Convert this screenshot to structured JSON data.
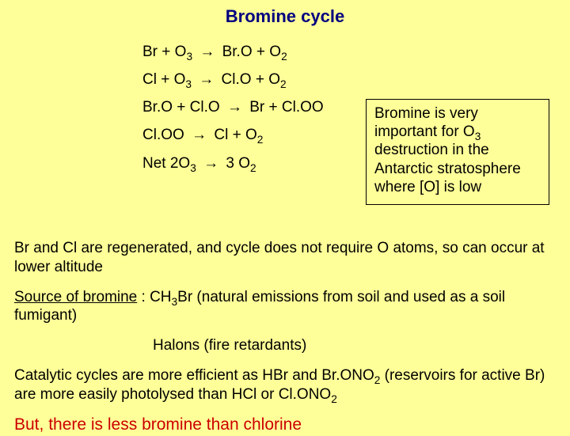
{
  "title": "Bromine cycle",
  "colors": {
    "background": "#ffff99",
    "title": "#000080",
    "final": "#cc0000",
    "box_border": "#000000",
    "text": "#000000"
  },
  "equations": {
    "eq1_lhs": "Br + O",
    "eq1_sub1": "3",
    "eq1_rhs": "Br.O + O",
    "eq1_sub2": "2",
    "eq2_lhs": "Cl + O",
    "eq2_sub1": "3",
    "eq2_rhs": "Cl.O + O",
    "eq2_sub2": "2",
    "eq3_lhs": "Br.O + Cl.O",
    "eq3_rhs": "Br + Cl.OO",
    "eq4_lhs": "Cl.OO",
    "eq4_rhs": "Cl + O",
    "eq4_sub": "2",
    "net_lhs": "Net 2O",
    "net_sub1": "3",
    "net_rhs": "3 O",
    "net_sub2": "2",
    "arrow": "→"
  },
  "sidebox": {
    "l1": "Bromine is very important for O",
    "l1_sub": "3",
    "l2": " destruction in the Antarctic stratosphere where [O] is low"
  },
  "body": {
    "p1": "Br and Cl are regenerated, and cycle does not require O atoms, so can occur at lower altitude",
    "p2a": "Source of bromine",
    "p2b": " : CH",
    "p2_sub": "3",
    "p2c": "Br (natural emissions from soil and used as a soil fumigant)",
    "halons": "Halons (fire retardants)",
    "p3a": "Catalytic cycles are more efficient as HBr and Br.ONO",
    "p3_sub1": "2",
    "p3b": " (reservoirs for active Br) are more easily photolysed than HCl or Cl.ONO",
    "p3_sub2": "2",
    "final": "But, there is less bromine than chlorine"
  }
}
